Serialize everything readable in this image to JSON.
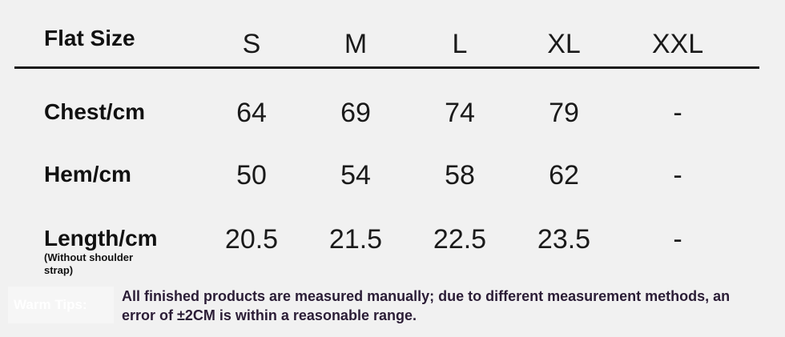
{
  "table": {
    "header": [
      "Flat Size",
      "S",
      "M",
      "L",
      "XL",
      "XXL"
    ],
    "rows": [
      [
        "Chest/cm",
        "64",
        "69",
        "74",
        "79",
        "-"
      ],
      [
        "Hem/cm",
        "50",
        "54",
        "58",
        "62",
        "-"
      ],
      [
        "Length/cm",
        "20.5",
        "21.5",
        "22.5",
        "23.5",
        "-"
      ]
    ],
    "row_note": "(Without shoulder strap)"
  },
  "tips": {
    "label": "Warm Tips:",
    "text": "All finished products are measured manually; due to different measurement methods, an error of ±2CM is within a reasonable range."
  }
}
